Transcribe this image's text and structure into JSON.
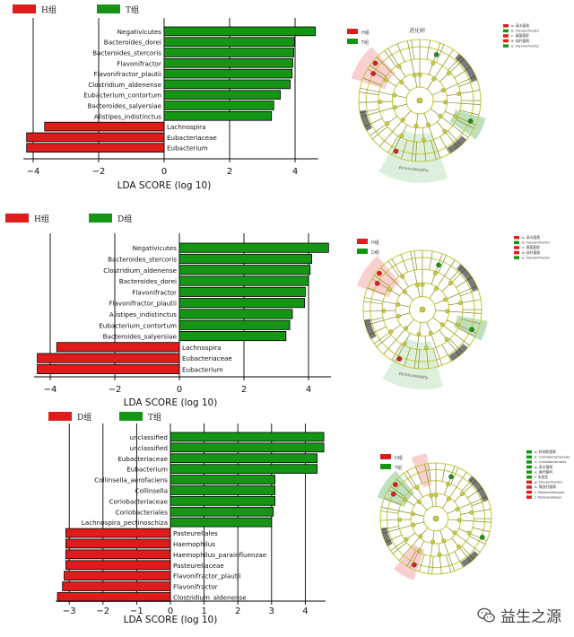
{
  "colors": {
    "enriched_pos": "#149614",
    "enriched_neg": "#e01b1b",
    "node_fill": "#c8cc44",
    "node_stroke": "#8a8c20",
    "axis": "#000000"
  },
  "watermark": {
    "text": "益生之源",
    "icon": "wechat-icon"
  },
  "chart_data": [
    {
      "type": "bar",
      "orientation": "horizontal",
      "legend": [
        {
          "name": "H组",
          "color": "#e01b1b"
        },
        {
          "name": "T组",
          "color": "#149614"
        }
      ],
      "xlabel": "LDA SCORE (log 10)",
      "xlim": [
        -4.3,
        4.7
      ],
      "xticks": [
        -4,
        -2,
        0,
        2,
        4
      ],
      "bars": [
        {
          "label": "Negativicutes",
          "value": 4.62,
          "group": "T组"
        },
        {
          "label": "Bacteroides_dorei",
          "value": 3.98,
          "group": "T组"
        },
        {
          "label": "Bacteroides_stercoris",
          "value": 3.96,
          "group": "T组"
        },
        {
          "label": "Flavonifractor",
          "value": 3.93,
          "group": "T组"
        },
        {
          "label": "Flavonifractor_plautii",
          "value": 3.91,
          "group": "T组"
        },
        {
          "label": "Clostridium_aldenense",
          "value": 3.85,
          "group": "T组"
        },
        {
          "label": "Eubacterium_contortum",
          "value": 3.55,
          "group": "T组"
        },
        {
          "label": "Bacteroides_salyersiae",
          "value": 3.35,
          "group": "T组"
        },
        {
          "label": "Alistipes_indistinctus",
          "value": 3.28,
          "group": "T组"
        },
        {
          "label": "Lachnospira",
          "value": -3.65,
          "group": "H组"
        },
        {
          "label": "Eubacteriaceae",
          "value": -4.2,
          "group": "H组"
        },
        {
          "label": "Eubacterium",
          "value": -4.2,
          "group": "H组"
        }
      ],
      "cladogram": {
        "title": "进化树",
        "legend": [
          {
            "name": "H组",
            "color": "#e01b1b"
          },
          {
            "name": "T组",
            "color": "#149614"
          }
        ],
        "key": [
          {
            "text": "a: 高丰菌属",
            "color": "#e01b1b"
          },
          {
            "text": "b: Flavonifractor",
            "color": "#149614"
          },
          {
            "text": "c: 真菌菌群",
            "color": "#e01b1b"
          },
          {
            "text": "d: 拟杆菌属",
            "color": "#e01b1b"
          },
          {
            "text": "e: Flavonifractor",
            "color": "#149614"
          }
        ],
        "region_label": "Firmicutes/phy"
      }
    },
    {
      "type": "bar",
      "orientation": "horizontal",
      "legend": [
        {
          "name": "H组",
          "color": "#e01b1b"
        },
        {
          "name": "D组",
          "color": "#149614"
        }
      ],
      "xlabel": "LDA SCORE (log 10)",
      "xlim": [
        -4.5,
        4.7
      ],
      "xticks": [
        -4,
        -2,
        0,
        2,
        4
      ],
      "bars": [
        {
          "label": "Negativicutes",
          "value": 4.62,
          "group": "D组"
        },
        {
          "label": "Bacteroides_stercoris",
          "value": 4.1,
          "group": "D组"
        },
        {
          "label": "Clostridium_aldenense",
          "value": 4.05,
          "group": "D组"
        },
        {
          "label": "Bacteroides_dorei",
          "value": 4.0,
          "group": "D组"
        },
        {
          "label": "Flavonifractor",
          "value": 3.9,
          "group": "D组"
        },
        {
          "label": "Flavonifractor_plautii",
          "value": 3.88,
          "group": "D组"
        },
        {
          "label": "Alistipes_indistinctus",
          "value": 3.5,
          "group": "D组"
        },
        {
          "label": "Eubacterium_contortum",
          "value": 3.42,
          "group": "D组"
        },
        {
          "label": "Bacteroides_salyersiae",
          "value": 3.3,
          "group": "D组"
        },
        {
          "label": "Lachnospira",
          "value": -3.8,
          "group": "H组"
        },
        {
          "label": "Eubacteriaceae",
          "value": -4.4,
          "group": "H组"
        },
        {
          "label": "Eubacterium",
          "value": -4.4,
          "group": "H组"
        }
      ],
      "cladogram": {
        "title": "",
        "legend": [
          {
            "name": "H组",
            "color": "#e01b1b"
          },
          {
            "name": "D组",
            "color": "#149614"
          }
        ],
        "key": [
          {
            "text": "a: 高丰菌属",
            "color": "#e01b1b"
          },
          {
            "text": "b: Flavonifractor",
            "color": "#149614"
          },
          {
            "text": "c: 真菌菌群",
            "color": "#e01b1b"
          },
          {
            "text": "d: 拟杆菌属",
            "color": "#e01b1b"
          },
          {
            "text": "e: Flavonifractor",
            "color": "#149614"
          }
        ],
        "region_label": "Firmicutes/phy"
      }
    },
    {
      "type": "bar",
      "orientation": "horizontal",
      "legend": [
        {
          "name": "D组",
          "color": "#e01b1b"
        },
        {
          "name": "T组",
          "color": "#149614"
        }
      ],
      "xlabel": "LDA SCORE (log 10)",
      "xlim": [
        -3.4,
        4.6
      ],
      "xticks": [
        -3,
        -2,
        -1,
        0,
        1,
        2,
        3,
        4
      ],
      "bars": [
        {
          "label": "unclassified",
          "value": 4.55,
          "group": "T组"
        },
        {
          "label": "unclassified",
          "value": 4.55,
          "group": "T组"
        },
        {
          "label": "Eubacteriaceae",
          "value": 4.35,
          "group": "T组"
        },
        {
          "label": "Eubacterium",
          "value": 4.35,
          "group": "T组"
        },
        {
          "label": "Collinsella_aerofaciens",
          "value": 3.1,
          "group": "T组"
        },
        {
          "label": "Collinsella",
          "value": 3.1,
          "group": "T组"
        },
        {
          "label": "Coriobacteriaceae",
          "value": 3.1,
          "group": "T组"
        },
        {
          "label": "Coriobacteriales",
          "value": 3.05,
          "group": "T组"
        },
        {
          "label": "Lachnospira_pectinoschiza",
          "value": 3.0,
          "group": "T组"
        },
        {
          "label": "Pasteurellales",
          "value": -3.1,
          "group": "D组"
        },
        {
          "label": "Haemophilus",
          "value": -3.1,
          "group": "D组"
        },
        {
          "label": "Haemophilus_parainfluenzae",
          "value": -3.1,
          "group": "D组"
        },
        {
          "label": "Pasteurellaceae",
          "value": -3.1,
          "group": "D组"
        },
        {
          "label": "Flavonifractor_plautii",
          "value": -3.15,
          "group": "D组"
        },
        {
          "label": "Flavonifractor",
          "value": -3.2,
          "group": "D组"
        },
        {
          "label": "Clostridium_aldenense",
          "value": -3.35,
          "group": "D组"
        }
      ],
      "cladogram": {
        "title": "",
        "legend": [
          {
            "name": "D组",
            "color": "#e01b1b"
          },
          {
            "name": "T组",
            "color": "#149614"
          }
        ],
        "key": [
          {
            "text": "a: 科林斯菌属",
            "color": "#149614"
          },
          {
            "text": "b: Coriobacteriaceae",
            "color": "#149614"
          },
          {
            "text": "c: Coriobacteriales",
            "color": "#149614"
          },
          {
            "text": "d: 高丰菌属",
            "color": "#149614"
          },
          {
            "text": "e: 真杆菌科",
            "color": "#149614"
          },
          {
            "text": "f: 未鉴定",
            "color": "#149614"
          },
          {
            "text": "g: Flavonifractor",
            "color": "#e01b1b"
          },
          {
            "text": "h: 嗜血杆菌属",
            "color": "#e01b1b"
          },
          {
            "text": "i: Pasteurellaceae",
            "color": "#e01b1b"
          },
          {
            "text": "j: Pasteurellales",
            "color": "#e01b1b"
          }
        ],
        "region_label": ""
      }
    }
  ]
}
